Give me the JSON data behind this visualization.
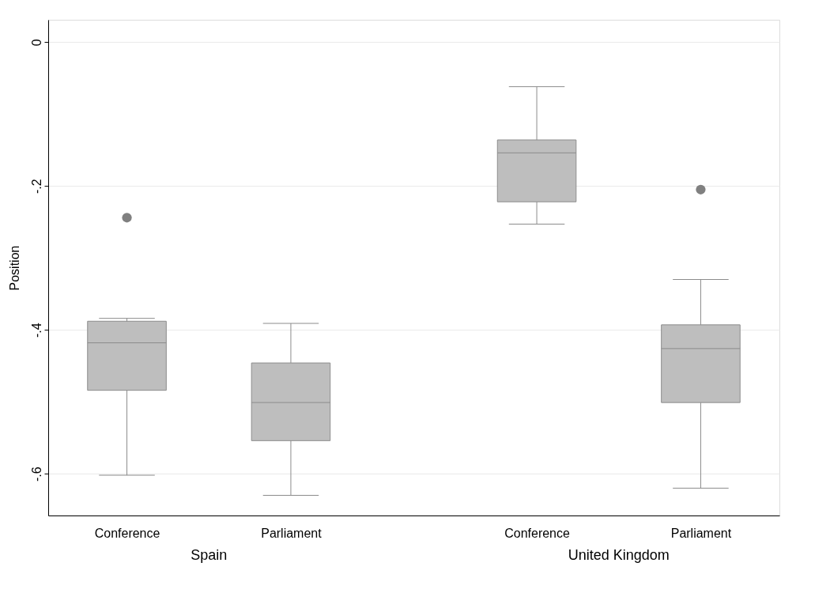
{
  "chart_data": {
    "type": "box",
    "ylabel": "Position",
    "categories": [
      "Conference",
      "Parliament",
      "Conference",
      "Parliament"
    ],
    "annotations": [
      "Spain",
      "United Kingdom"
    ],
    "ylim": [
      -0.658,
      0.031
    ],
    "yticks": [
      0,
      {
        "value": -0.2,
        "label": "-.2"
      },
      {
        "value": -0.4,
        "label": "-.4"
      },
      {
        "value": -0.6,
        "label": "-.6"
      }
    ],
    "grid": "y",
    "series": [
      {
        "color": "#bebebe",
        "boxes": [
          {
            "low": -0.602,
            "q1": -0.484,
            "median": -0.418,
            "q3": -0.388,
            "high": -0.384,
            "outliers": [
              -0.244
            ]
          },
          {
            "low": -0.63,
            "q1": -0.554,
            "median": -0.501,
            "q3": -0.446,
            "high": -0.391
          },
          {
            "low": -0.253,
            "q1": -0.222,
            "median": -0.154,
            "q3": -0.136,
            "high": -0.062
          },
          {
            "low": -0.62,
            "q1": -0.501,
            "median": -0.426,
            "q3": -0.393,
            "high": -0.33,
            "outliers": [
              -0.205
            ]
          }
        ]
      }
    ]
  }
}
